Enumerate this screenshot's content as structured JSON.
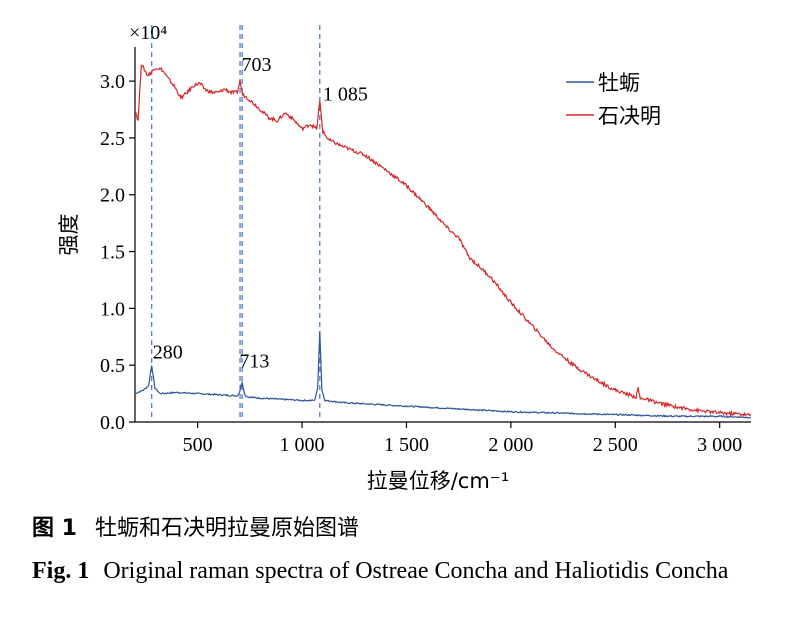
{
  "chart_data": {
    "type": "line",
    "title": "",
    "xlabel": "拉曼位移/cm⁻¹",
    "ylabel": "强度",
    "y_multiplier": "×10⁴",
    "xlim": [
      200,
      3150
    ],
    "ylim": [
      0,
      3.3
    ],
    "xticks": [
      {
        "value": 500,
        "label": "500"
      },
      {
        "value": 1000,
        "label": "1 000"
      },
      {
        "value": 1500,
        "label": "1 500"
      },
      {
        "value": 2000,
        "label": "2 000"
      },
      {
        "value": 2500,
        "label": "2 500"
      },
      {
        "value": 3000,
        "label": "3 000"
      }
    ],
    "yticks": [
      {
        "value": 0,
        "label": "0.0"
      },
      {
        "value": 0.5,
        "label": "0.5"
      },
      {
        "value": 1.0,
        "label": "1.0"
      },
      {
        "value": 1.5,
        "label": "1.5"
      },
      {
        "value": 2.0,
        "label": "2.0"
      },
      {
        "value": 2.5,
        "label": "2.5"
      },
      {
        "value": 3.0,
        "label": "3.0"
      }
    ],
    "legend_position": "top-right",
    "series": [
      {
        "name": "牡蛎",
        "color": "#2f5597",
        "x": [
          200,
          240,
          265,
          280,
          295,
          320,
          400,
          500,
          600,
          690,
          700,
          713,
          726,
          740,
          800,
          900,
          1000,
          1060,
          1075,
          1085,
          1095,
          1110,
          1200,
          1300,
          1400,
          1500,
          1600,
          1700,
          1800,
          1900,
          2000,
          2200,
          2400,
          2600,
          2800,
          3000,
          3150
        ],
        "values": [
          0.25,
          0.28,
          0.32,
          0.5,
          0.3,
          0.25,
          0.26,
          0.25,
          0.24,
          0.23,
          0.26,
          0.35,
          0.24,
          0.22,
          0.21,
          0.2,
          0.19,
          0.19,
          0.3,
          0.8,
          0.28,
          0.19,
          0.17,
          0.16,
          0.15,
          0.14,
          0.13,
          0.12,
          0.11,
          0.1,
          0.09,
          0.08,
          0.07,
          0.06,
          0.05,
          0.05,
          0.04
        ]
      },
      {
        "name": "石决明",
        "color": "#d62728",
        "x": [
          200,
          215,
          230,
          245,
          260,
          280,
          300,
          330,
          360,
          390,
          420,
          450,
          480,
          510,
          540,
          570,
          600,
          630,
          660,
          690,
          703,
          716,
          740,
          770,
          800,
          840,
          880,
          920,
          960,
          1000,
          1040,
          1070,
          1085,
          1100,
          1130,
          1200,
          1300,
          1400,
          1500,
          1600,
          1700,
          1750,
          1800,
          1900,
          2000,
          2100,
          2200,
          2300,
          2400,
          2500,
          2600,
          2610,
          2620,
          2630,
          2700,
          2800,
          2900,
          3000,
          3100,
          3150
        ],
        "values": [
          2.75,
          2.65,
          3.15,
          3.1,
          3.05,
          3.08,
          3.12,
          3.1,
          3.02,
          2.95,
          2.85,
          2.9,
          2.96,
          2.98,
          2.92,
          2.9,
          2.9,
          2.93,
          2.9,
          2.9,
          3.0,
          2.88,
          2.85,
          2.8,
          2.75,
          2.68,
          2.65,
          2.72,
          2.66,
          2.58,
          2.62,
          2.58,
          2.82,
          2.55,
          2.48,
          2.42,
          2.35,
          2.22,
          2.08,
          1.9,
          1.7,
          1.62,
          1.45,
          1.28,
          1.05,
          0.85,
          0.65,
          0.5,
          0.38,
          0.28,
          0.22,
          0.3,
          0.2,
          0.21,
          0.17,
          0.13,
          0.1,
          0.08,
          0.07,
          0.06
        ]
      }
    ],
    "reference_lines": [
      280,
      703,
      713,
      1085
    ],
    "annotations": [
      {
        "text": "280",
        "x": 285,
        "y": 0.56
      },
      {
        "text": "713",
        "x": 700,
        "y": 0.48
      },
      {
        "text": "703",
        "x": 710,
        "y": 3.09
      },
      {
        "text": "1 085",
        "x": 1100,
        "y": 2.83
      }
    ]
  },
  "caption": {
    "cn_label": "图 1",
    "cn_text": "牡蛎和石决明拉曼原始图谱",
    "en_label": "Fig. 1",
    "en_text": "Original raman spectra of Ostreae Concha and Haliotidis Concha"
  }
}
